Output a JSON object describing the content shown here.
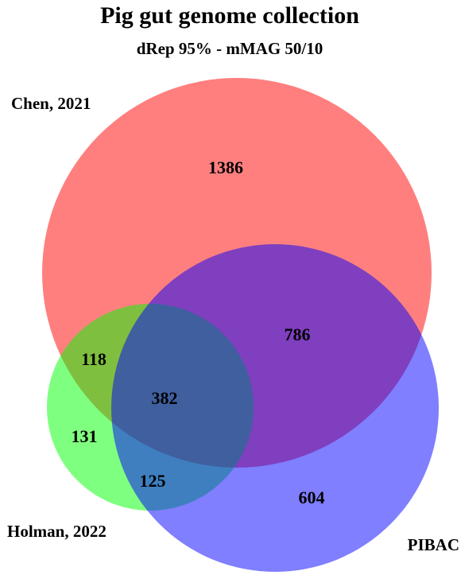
{
  "title": "Pig gut genome collection",
  "subtitle": "dRep 95% - mMAG 50/10",
  "sets": [
    {
      "name": "Chen, 2021",
      "color": "#ff0000"
    },
    {
      "name": "Holman, 2022",
      "color": "#00ff00"
    },
    {
      "name": "PIBAC",
      "color": "#0000ff"
    }
  ],
  "regions": {
    "chen_only": "1386",
    "chen_pibac": "786",
    "chen_holman": "118",
    "all_three": "382",
    "holman_only": "131",
    "holman_pibac": "125",
    "pibac_only": "604"
  },
  "chart_data": {
    "type": "venn",
    "title": "Pig gut genome collection",
    "subtitle": "dRep 95% - mMAG 50/10",
    "sets": [
      "Chen, 2021",
      "Holman, 2022",
      "PIBAC"
    ],
    "regions": [
      {
        "sets": [
          "Chen, 2021"
        ],
        "value": 1386
      },
      {
        "sets": [
          "Chen, 2021",
          "PIBAC"
        ],
        "value": 786
      },
      {
        "sets": [
          "Chen, 2021",
          "Holman, 2022"
        ],
        "value": 118
      },
      {
        "sets": [
          "Chen, 2021",
          "Holman, 2022",
          "PIBAC"
        ],
        "value": 382
      },
      {
        "sets": [
          "Holman, 2022"
        ],
        "value": 131
      },
      {
        "sets": [
          "Holman, 2022",
          "PIBAC"
        ],
        "value": 125
      },
      {
        "sets": [
          "PIBAC"
        ],
        "value": 604
      }
    ]
  }
}
